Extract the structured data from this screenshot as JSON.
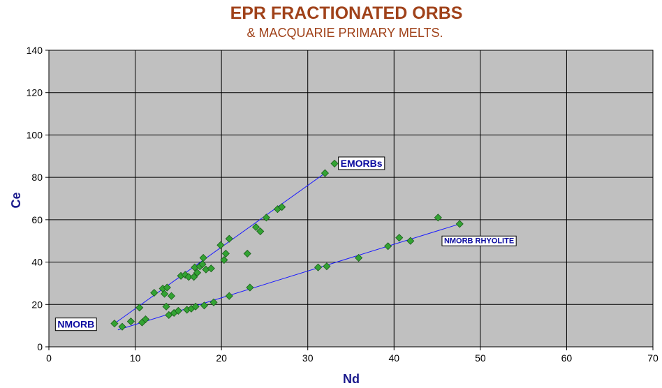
{
  "chart_data": {
    "type": "scatter",
    "title": "EPR FRACTIONATED ORBS",
    "subtitle": "& MACQUARIE PRIMARY MELTS.",
    "xlabel": "Nd",
    "ylabel": "Ce",
    "xlim": [
      0,
      70
    ],
    "ylim": [
      0,
      140
    ],
    "xticks": [
      0,
      10,
      20,
      30,
      40,
      50,
      60,
      70
    ],
    "yticks": [
      0,
      20,
      40,
      60,
      80,
      100,
      120,
      140
    ],
    "grid": true,
    "plot_background": "#c0c0c0",
    "marker_color": "#33a333",
    "line_color": "#1a1aff",
    "points": [
      {
        "x": 7.6,
        "y": 11
      },
      {
        "x": 8.5,
        "y": 9.5
      },
      {
        "x": 9.5,
        "y": 12
      },
      {
        "x": 10.5,
        "y": 18.5
      },
      {
        "x": 10.8,
        "y": 11.5
      },
      {
        "x": 11.2,
        "y": 13
      },
      {
        "x": 12.2,
        "y": 25.5
      },
      {
        "x": 13.2,
        "y": 27.5
      },
      {
        "x": 13.4,
        "y": 25
      },
      {
        "x": 13.6,
        "y": 19
      },
      {
        "x": 13.7,
        "y": 28
      },
      {
        "x": 13.9,
        "y": 15
      },
      {
        "x": 14.2,
        "y": 24
      },
      {
        "x": 14.5,
        "y": 16
      },
      {
        "x": 15.0,
        "y": 17
      },
      {
        "x": 15.3,
        "y": 33.5
      },
      {
        "x": 15.8,
        "y": 34
      },
      {
        "x": 16.0,
        "y": 17.5
      },
      {
        "x": 16.2,
        "y": 33
      },
      {
        "x": 16.5,
        "y": 18
      },
      {
        "x": 16.8,
        "y": 33
      },
      {
        "x": 16.9,
        "y": 37.5
      },
      {
        "x": 17.0,
        "y": 19
      },
      {
        "x": 17.2,
        "y": 35
      },
      {
        "x": 17.5,
        "y": 38
      },
      {
        "x": 17.8,
        "y": 39
      },
      {
        "x": 17.9,
        "y": 42
      },
      {
        "x": 18.0,
        "y": 19.5
      },
      {
        "x": 18.2,
        "y": 36.5
      },
      {
        "x": 18.8,
        "y": 37
      },
      {
        "x": 19.1,
        "y": 21
      },
      {
        "x": 19.9,
        "y": 48
      },
      {
        "x": 20.3,
        "y": 41
      },
      {
        "x": 20.5,
        "y": 44
      },
      {
        "x": 20.9,
        "y": 24
      },
      {
        "x": 20.9,
        "y": 51
      },
      {
        "x": 23.0,
        "y": 44
      },
      {
        "x": 23.3,
        "y": 28
      },
      {
        "x": 24.0,
        "y": 56.5
      },
      {
        "x": 24.5,
        "y": 54.5
      },
      {
        "x": 25.2,
        "y": 61
      },
      {
        "x": 26.5,
        "y": 65
      },
      {
        "x": 27.0,
        "y": 66
      },
      {
        "x": 31.2,
        "y": 37.5
      },
      {
        "x": 32.0,
        "y": 82
      },
      {
        "x": 32.2,
        "y": 38
      },
      {
        "x": 33.1,
        "y": 86.5
      },
      {
        "x": 35.9,
        "y": 42
      },
      {
        "x": 39.3,
        "y": 47.5
      },
      {
        "x": 40.6,
        "y": 51.5
      },
      {
        "x": 41.9,
        "y": 50
      },
      {
        "x": 45.1,
        "y": 61
      },
      {
        "x": 47.6,
        "y": 58
      }
    ],
    "trend_lines": [
      {
        "x": [
          7.6,
          32.0
        ],
        "y": [
          11,
          82
        ]
      },
      {
        "x": [
          8.0,
          47.6
        ],
        "y": [
          8,
          58
        ]
      }
    ],
    "annotations": [
      {
        "text": "NMORB",
        "x": 1.0,
        "y": 9,
        "style": "large"
      },
      {
        "text": "EMORBs",
        "x": 33.8,
        "y": 85,
        "style": "large"
      },
      {
        "text": "NMORB RHYOLITE",
        "x": 45.8,
        "y": 49,
        "style": "small"
      }
    ]
  }
}
